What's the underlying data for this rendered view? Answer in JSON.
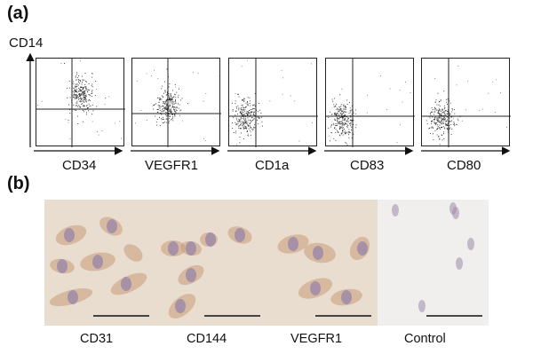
{
  "figure": {
    "panel_a_label": "(a)",
    "panel_b_label": "(b)",
    "y_axis_label": "CD14"
  },
  "flow_panels": [
    {
      "x_label": "CD34"
    },
    {
      "x_label": "VEGFR1"
    },
    {
      "x_label": "CD1a"
    },
    {
      "x_label": "CD83"
    },
    {
      "x_label": "CD80"
    }
  ],
  "stain_panels": [
    {
      "label": "CD31"
    },
    {
      "label": "CD144"
    },
    {
      "label": "VEGFR1"
    },
    {
      "label": "Control"
    }
  ],
  "colors": {
    "background_stained": "#e9ddcf",
    "cell_body": "#c89a7a",
    "nucleus": "#9d8aa8",
    "control_background": "#f1efee"
  }
}
